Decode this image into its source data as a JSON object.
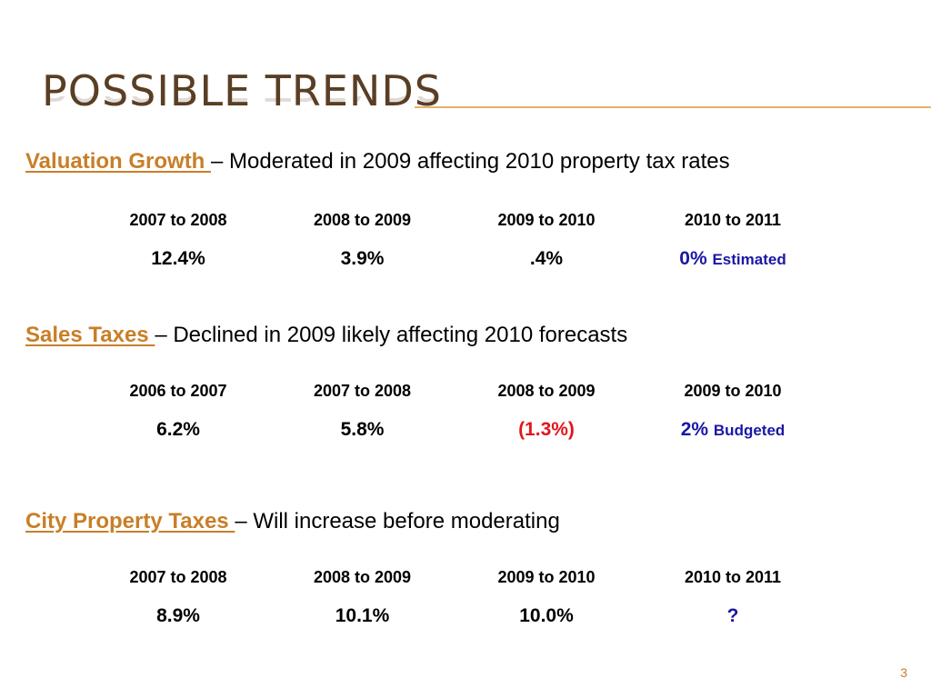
{
  "title": "Possible Trends",
  "sections": [
    {
      "name": "Valuation Growth ",
      "desc": "– Moderated in 2009 affecting 2010 property tax rates",
      "headers": [
        "2007 to 2008",
        "2008 to 2009",
        "2009 to 2010",
        "2010 to 2011"
      ],
      "values": [
        "12.4%",
        "3.9%",
        ".4%",
        "0%"
      ],
      "note": "Estimated"
    },
    {
      "name": "Sales Taxes ",
      "desc": "– Declined in 2009 likely affecting 2010 forecasts",
      "headers": [
        "2006 to 2007",
        "2007 to 2008",
        "2008 to 2009",
        "2009 to 2010"
      ],
      "values": [
        "6.2%",
        "5.8%",
        "(1.3%)",
        "2%"
      ],
      "note": "Budgeted"
    },
    {
      "name": "City Property Taxes ",
      "desc": "– Will increase before moderating",
      "headers": [
        "2007 to 2008",
        "2008 to 2009",
        "2009 to 2010",
        "2010 to 2011"
      ],
      "values": [
        "8.9%",
        "10.1%",
        "10.0%",
        "?"
      ]
    }
  ],
  "page_number": "3",
  "colors": {
    "title": "#5a3e24",
    "link": "#c87f28",
    "negative": "#e0161b",
    "projection": "#1a17a6",
    "rule": "#e2b36a"
  }
}
